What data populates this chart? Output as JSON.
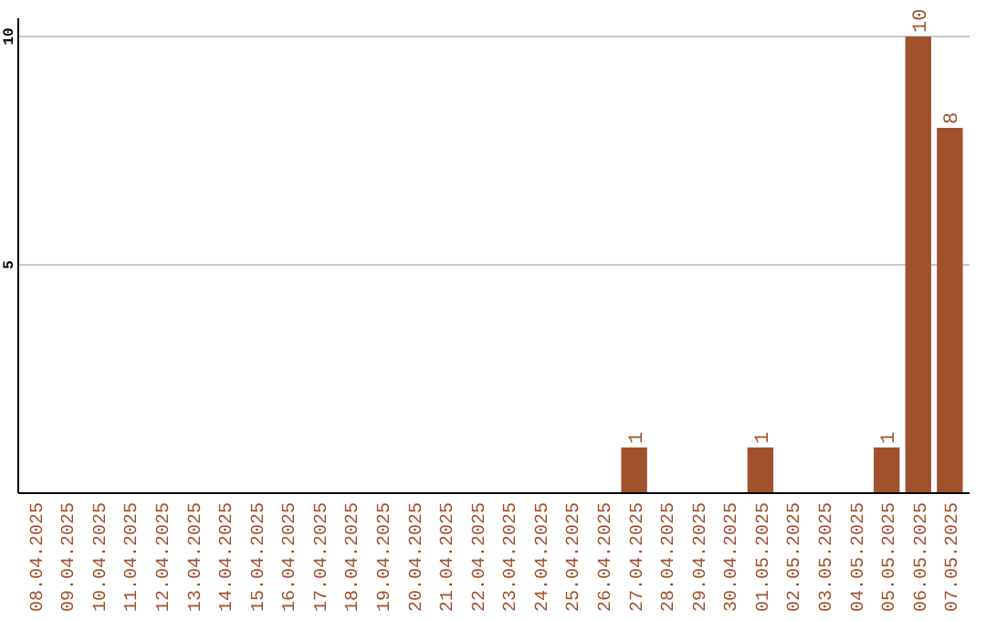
{
  "chart_data": {
    "type": "bar",
    "categories": [
      "08.04.2025",
      "09.04.2025",
      "10.04.2025",
      "11.04.2025",
      "12.04.2025",
      "13.04.2025",
      "14.04.2025",
      "15.04.2025",
      "16.04.2025",
      "17.04.2025",
      "18.04.2025",
      "19.04.2025",
      "20.04.2025",
      "21.04.2025",
      "22.04.2025",
      "23.04.2025",
      "24.04.2025",
      "25.04.2025",
      "26.04.2025",
      "27.04.2025",
      "28.04.2025",
      "29.04.2025",
      "30.04.2025",
      "01.05.2025",
      "02.05.2025",
      "03.05.2025",
      "04.05.2025",
      "05.05.2025",
      "06.05.2025",
      "07.05.2025"
    ],
    "values": [
      0,
      0,
      0,
      0,
      0,
      0,
      0,
      0,
      0,
      0,
      0,
      0,
      0,
      0,
      0,
      0,
      0,
      0,
      0,
      1,
      0,
      0,
      0,
      1,
      0,
      0,
      0,
      1,
      10,
      8
    ],
    "value_labels": [
      null,
      null,
      null,
      null,
      null,
      null,
      null,
      null,
      null,
      null,
      null,
      null,
      null,
      null,
      null,
      null,
      null,
      null,
      null,
      "1",
      null,
      null,
      null,
      "1",
      null,
      null,
      null,
      "1",
      "10",
      "8"
    ],
    "color": "#a0522d",
    "ylim": [
      0,
      10
    ],
    "yticks": [
      5,
      10
    ],
    "grid": "y"
  }
}
